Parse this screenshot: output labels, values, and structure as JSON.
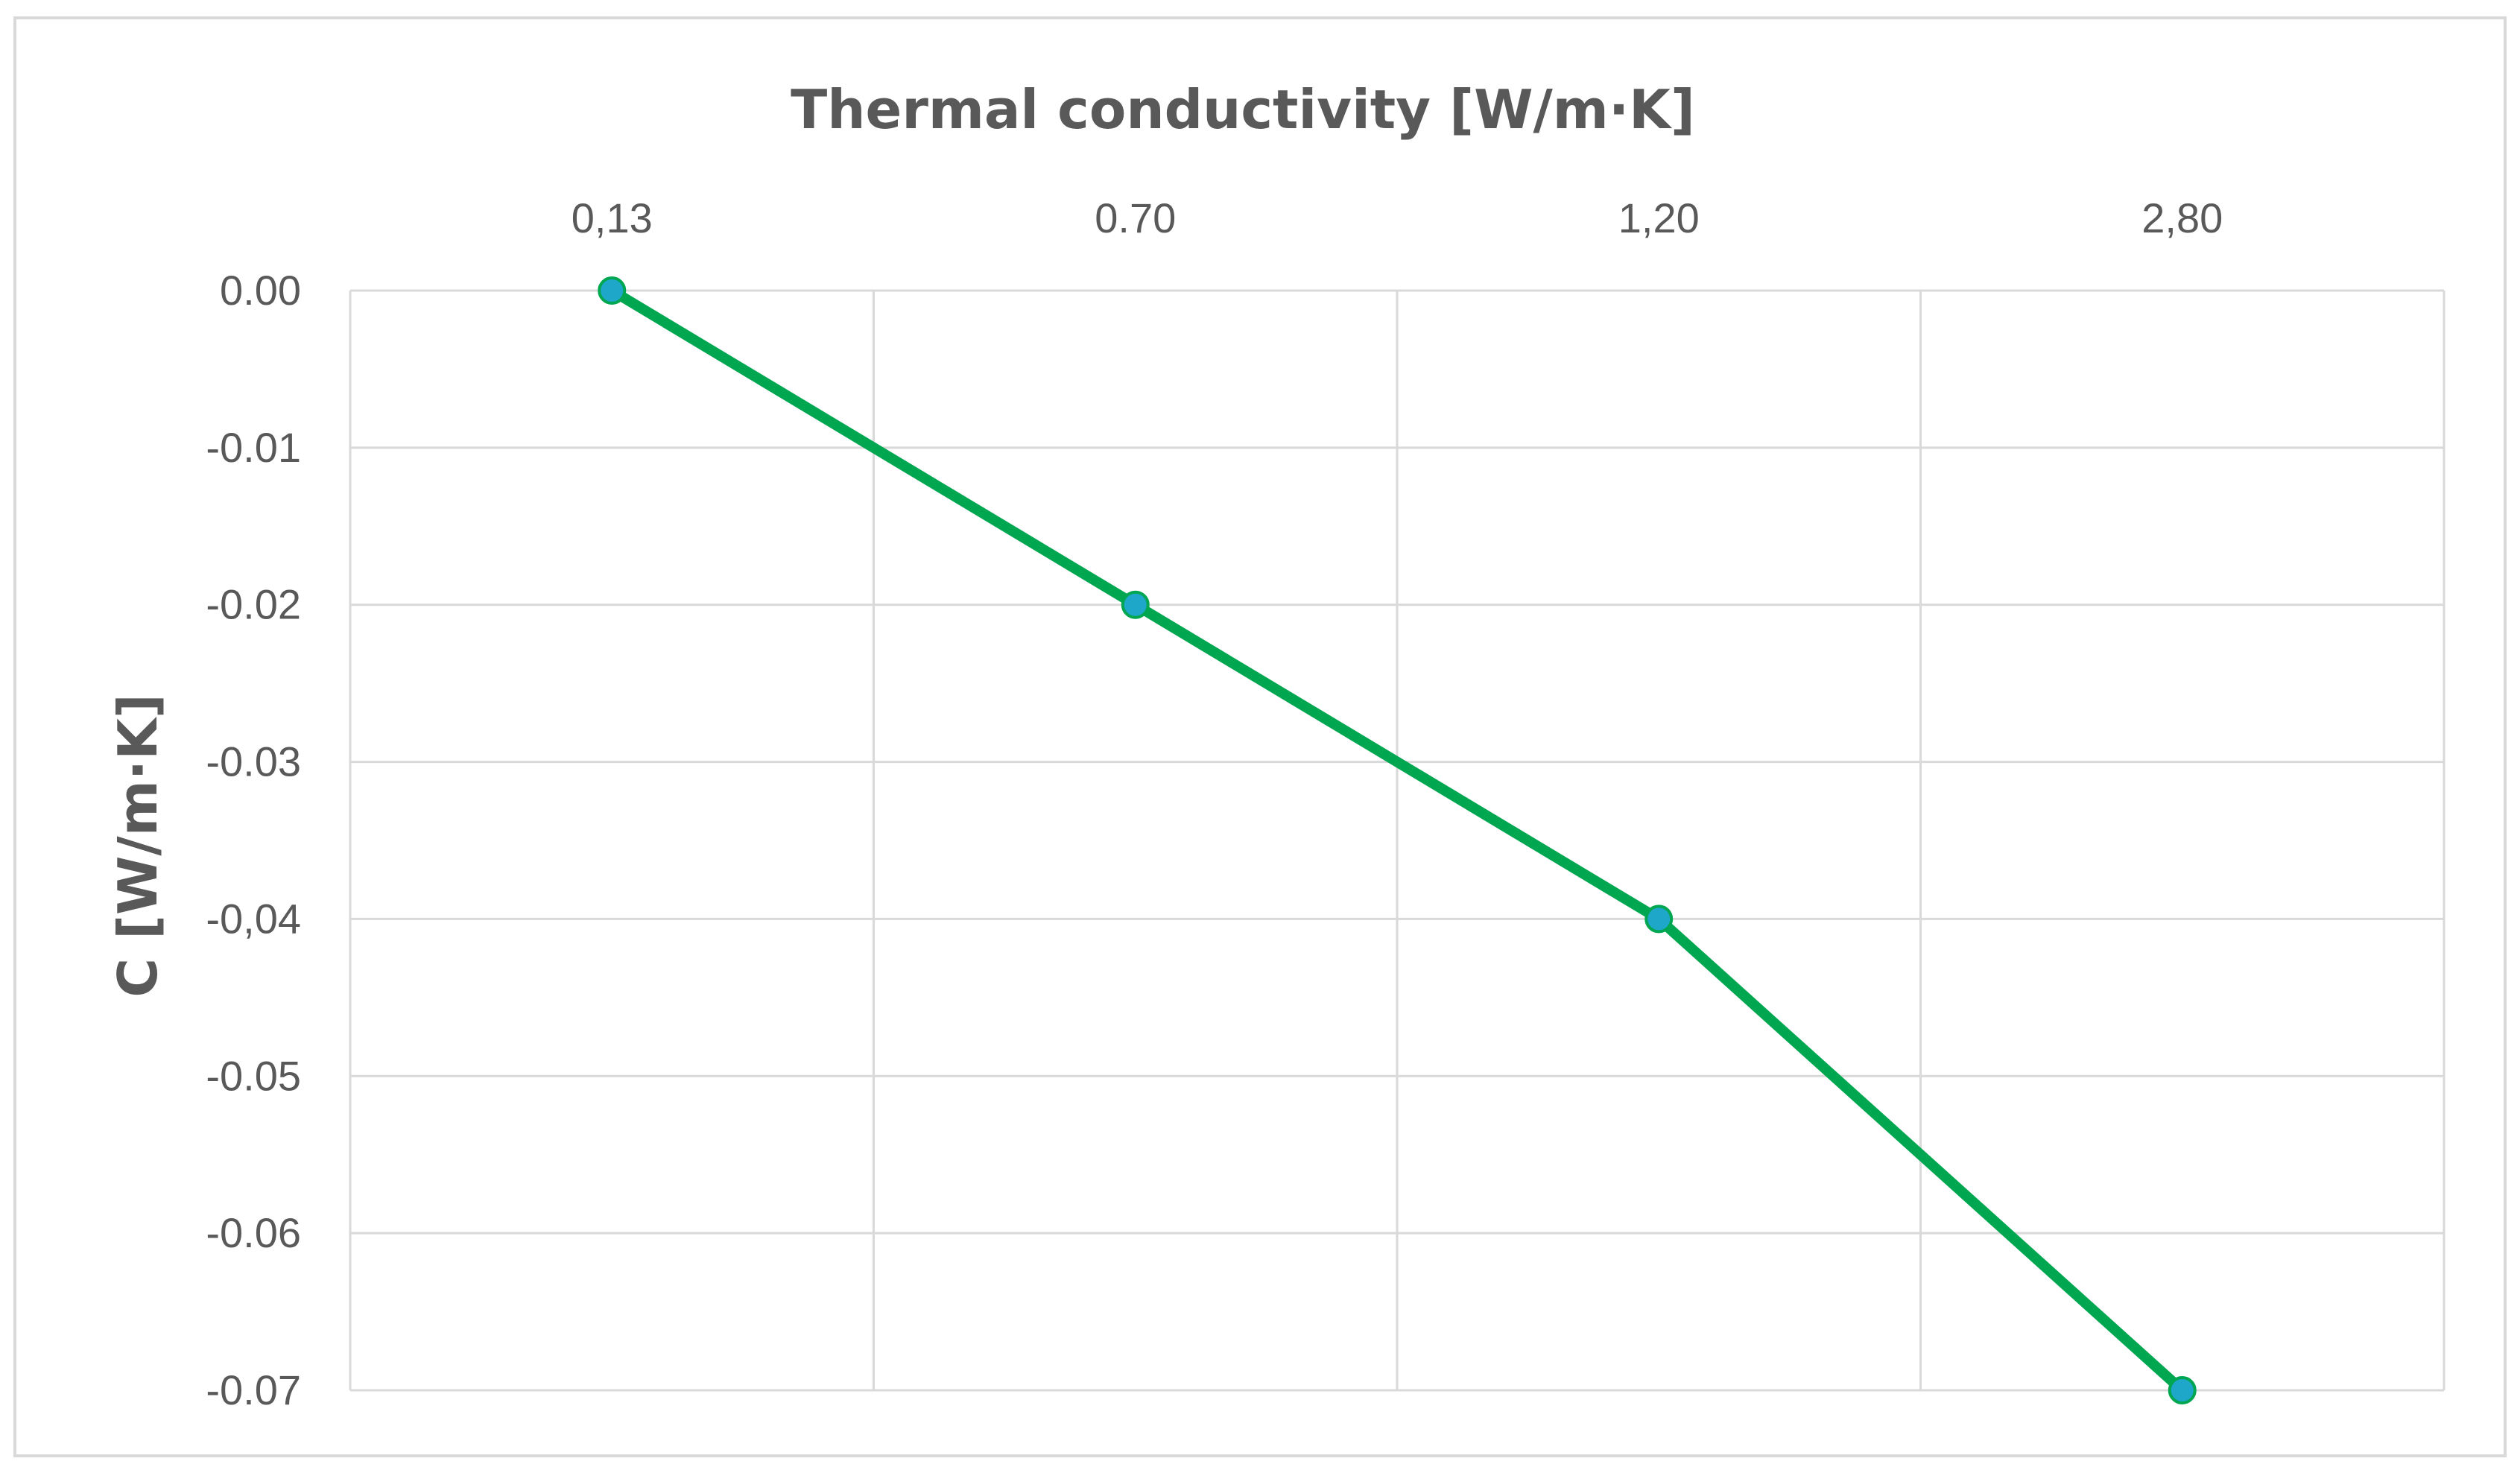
{
  "chart_data": {
    "type": "line",
    "title": "",
    "xlabel": "Thermal conductivity [W/m·K]",
    "ylabel": "C [W/m·K]",
    "x_axis_position": "top",
    "categories": [
      "0,13",
      "0.70",
      "1,20",
      "2,80"
    ],
    "series": [
      {
        "values": [
          0.0,
          -0.02,
          -0.04,
          -0.07
        ]
      }
    ],
    "ylim": [
      -0.07,
      0.0
    ],
    "y_ticks": [
      0.0,
      -0.01,
      -0.02,
      -0.03,
      -0.04,
      -0.05,
      -0.06,
      -0.07
    ],
    "y_tick_labels": [
      "0.00",
      "-0.01",
      "-0.02",
      "-0.03",
      "-0,04",
      "-0.05",
      "-0.06",
      "-0.07"
    ],
    "grid": true,
    "legend": "none",
    "colors": {
      "line": "#00a650",
      "marker": "#1fa7c9",
      "grid": "#d9d9d9",
      "text": "#595959"
    }
  }
}
